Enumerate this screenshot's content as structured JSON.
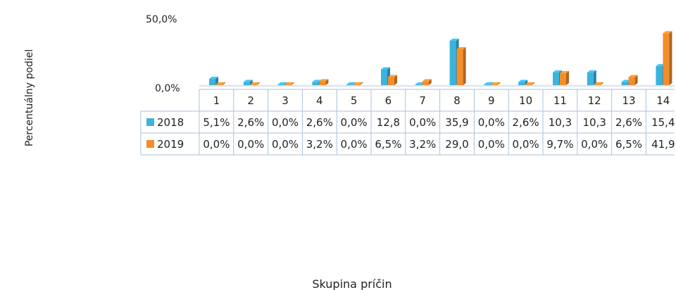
{
  "chart_data": {
    "type": "bar",
    "categories": [
      "1",
      "2",
      "3",
      "4",
      "5",
      "6",
      "7",
      "8",
      "9",
      "10",
      "11",
      "12",
      "13",
      "14"
    ],
    "series": [
      {
        "name": "2018",
        "color": "#3bb3de",
        "values": [
          5.1,
          2.6,
          0.0,
          2.6,
          0.0,
          12.8,
          0.0,
          35.9,
          0.0,
          2.6,
          10.3,
          10.3,
          2.6,
          15.4
        ],
        "labels": [
          "5,1%",
          "2,6%",
          "0,0%",
          "2,6%",
          "0,0%",
          "12,8",
          "0,0%",
          "35,9",
          "0,0%",
          "2,6%",
          "10,3",
          "10,3",
          "2,6%",
          "15,4"
        ]
      },
      {
        "name": "2019",
        "color": "#f28e2b",
        "values": [
          0.0,
          0.0,
          0.0,
          3.2,
          0.0,
          6.5,
          3.2,
          29.0,
          0.0,
          0.0,
          9.7,
          0.0,
          6.5,
          41.9
        ],
        "labels": [
          "0,0%",
          "0,0%",
          "0,0%",
          "3,2%",
          "0,0%",
          "6,5%",
          "3,2%",
          "29,0",
          "0,0%",
          "0,0%",
          "9,7%",
          "0,0%",
          "6,5%",
          "41,9"
        ]
      }
    ],
    "ylabel": "Percentuálny podiel",
    "xlabel": "Skupina príčin",
    "yticks": [
      "0,0%",
      "50,0%"
    ],
    "ylim": [
      0,
      50
    ],
    "grid": false,
    "legend": "data-table"
  }
}
